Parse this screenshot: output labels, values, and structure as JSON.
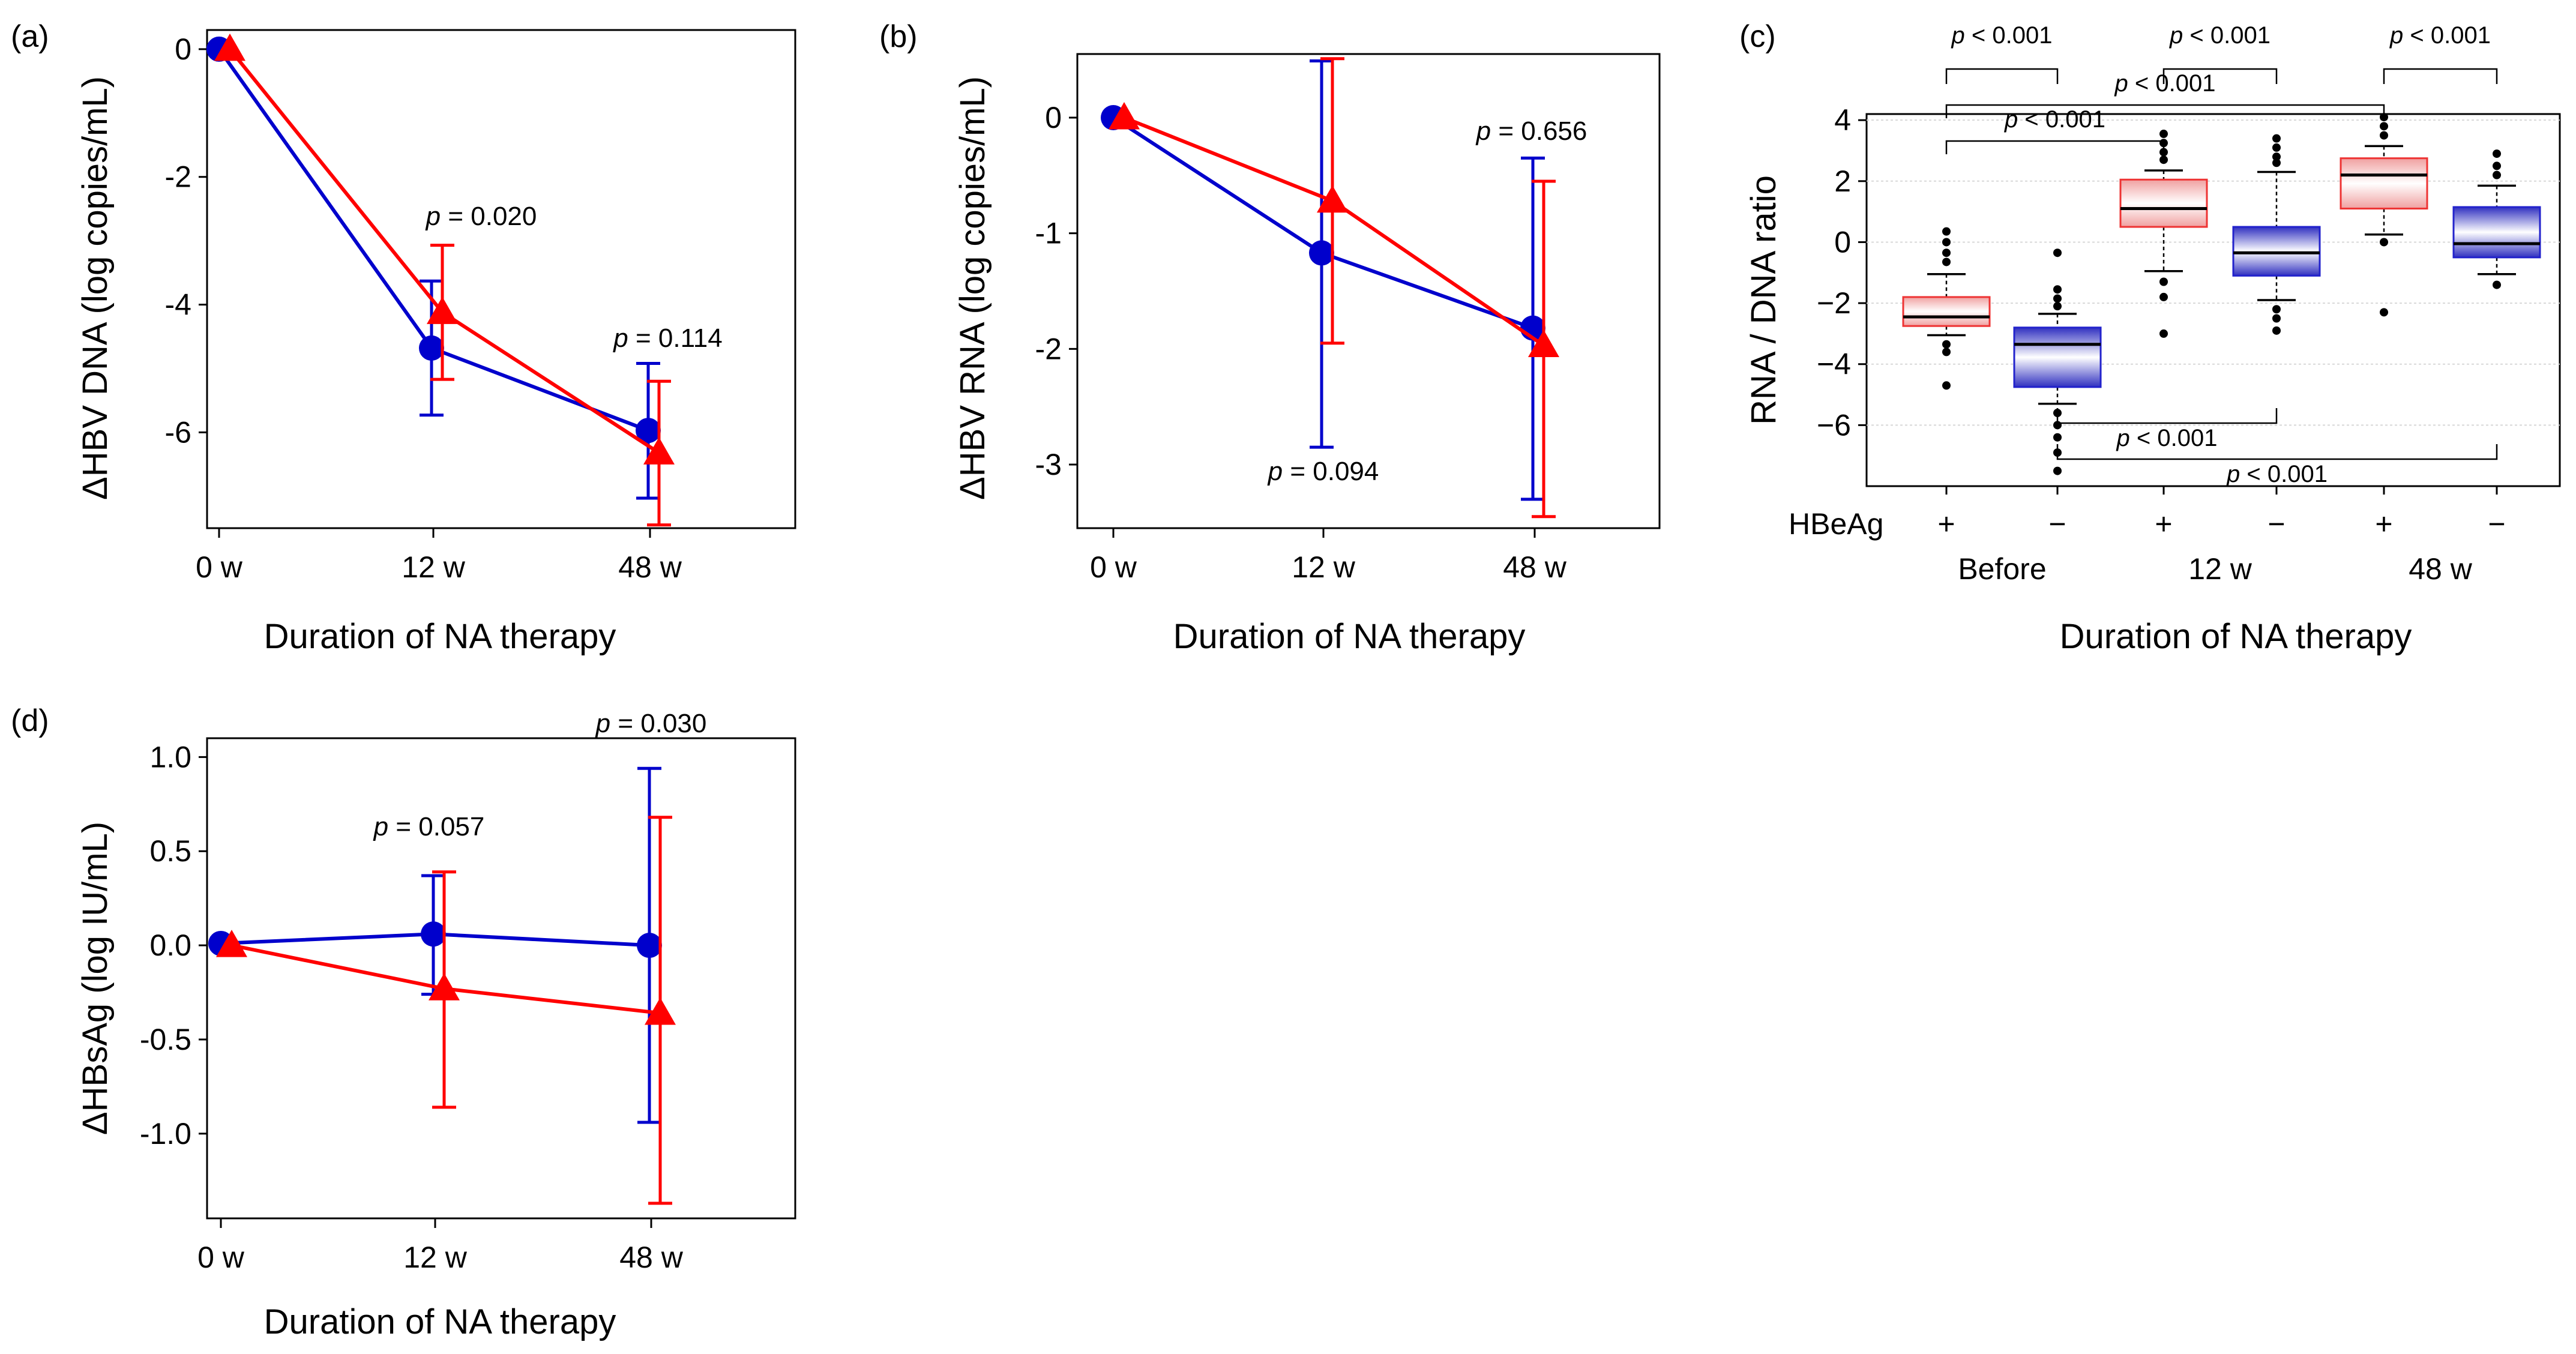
{
  "colors": {
    "hbeag_positive": "#ff0000",
    "hbeag_negative": "#0000cc",
    "box_positive_edge": "#ee3333",
    "box_negative_edge": "#2222cc"
  },
  "chart_data": [
    {
      "id": "a",
      "panel_label": "(a)",
      "type": "line",
      "x_categories": [
        "0 w",
        "12 w",
        "48 w"
      ],
      "xlabel": "Duration of NA therapy",
      "ylabel": "ΔHBV DNA (log copies/mL)",
      "ylim": [
        -7.5,
        0.3
      ],
      "yticks": [
        0,
        -2,
        -4,
        -6
      ],
      "ytick_labels": [
        "0",
        "-2",
        "-4",
        "-6"
      ],
      "series": [
        {
          "name": "HBeAg negative",
          "marker": "circle",
          "color": "#0000cc",
          "x": [
            0,
            12,
            48
          ],
          "values": [
            0,
            -4.68,
            -5.97
          ],
          "err_low": [
            null,
            -5.73,
            -7.03
          ],
          "err_high": [
            null,
            -3.63,
            -4.92
          ]
        },
        {
          "name": "HBeAg positive",
          "marker": "triangle",
          "color": "#ff0000",
          "x": [
            0,
            12,
            48
          ],
          "values": [
            0,
            -4.12,
            -6.32
          ],
          "err_low": [
            null,
            -5.17,
            -7.45
          ],
          "err_high": [
            null,
            -3.07,
            -5.2
          ]
        }
      ],
      "annotations": [
        {
          "at": "12 w",
          "p_prefix": "p",
          "p_text": " = 0.020"
        },
        {
          "at": "48 w",
          "p_prefix": "p",
          "p_text": " = 0.114"
        }
      ]
    },
    {
      "id": "b",
      "panel_label": "(b)",
      "type": "line",
      "x_categories": [
        "0 w",
        "12 w",
        "48 w"
      ],
      "xlabel": "Duration of NA therapy",
      "ylabel": "ΔHBV RNA (log copies/mL)",
      "ylim": [
        -3.55,
        0.55
      ],
      "yticks": [
        0,
        -1,
        -2,
        -3
      ],
      "ytick_labels": [
        "0",
        "-1",
        "-2",
        "-3"
      ],
      "series": [
        {
          "name": "HBeAg negative",
          "marker": "circle",
          "color": "#0000cc",
          "x": [
            0,
            12,
            48
          ],
          "values": [
            0,
            -1.17,
            -1.82
          ],
          "err_low": [
            null,
            -2.85,
            -3.3
          ],
          "err_high": [
            null,
            0.49,
            -0.35
          ]
        },
        {
          "name": "HBeAg positive",
          "marker": "triangle",
          "color": "#ff0000",
          "x": [
            0,
            12,
            48
          ],
          "values": [
            0,
            -0.72,
            -1.97
          ],
          "err_low": [
            null,
            -1.95,
            -3.45
          ],
          "err_high": [
            null,
            0.51,
            -0.55
          ]
        }
      ],
      "annotations": [
        {
          "at": "12 w",
          "p_prefix": "p",
          "p_text": " = 0.094"
        },
        {
          "at": "48 w",
          "p_prefix": "p",
          "p_text": " = 0.656"
        }
      ]
    },
    {
      "id": "c",
      "panel_label": "(c)",
      "type": "box",
      "xlabel": "Duration of NA therapy",
      "ylabel": "RNA / DNA ratio",
      "ylim": [
        -8,
        4.2
      ],
      "yticks": [
        4,
        2,
        0,
        -2,
        -4,
        -6
      ],
      "ytick_labels": [
        "4",
        "2",
        "0",
        "−2",
        "−4",
        "−6"
      ],
      "row_label": "HBeAg",
      "group_labels": [
        "Before",
        "12 w",
        "48 w"
      ],
      "boxes": [
        {
          "hbeag": "+",
          "group": "Before",
          "whisker_low": -3.05,
          "q1": -2.75,
          "median": -2.45,
          "q3": -1.8,
          "whisker_high": -1.05,
          "outliers": [
            0.35,
            0.0,
            -0.35,
            -0.65,
            -3.35,
            -3.6,
            -4.7
          ]
        },
        {
          "hbeag": "−",
          "group": "Before",
          "whisker_low": -5.3,
          "q1": -4.75,
          "median": -3.35,
          "q3": -2.8,
          "whisker_high": -2.35,
          "outliers": [
            -0.35,
            -1.55,
            -1.85,
            -2.1,
            -5.6,
            -6.0,
            -6.4,
            -6.9,
            -7.5
          ]
        },
        {
          "hbeag": "+",
          "group": "12 w",
          "whisker_low": -0.95,
          "q1": 0.5,
          "median": 1.1,
          "q3": 2.05,
          "whisker_high": 2.35,
          "outliers": [
            3.55,
            3.25,
            2.95,
            2.7,
            -1.3,
            -1.8,
            -3.0
          ]
        },
        {
          "hbeag": "−",
          "group": "12 w",
          "whisker_low": -1.9,
          "q1": -1.1,
          "median": -0.35,
          "q3": 0.5,
          "whisker_high": 2.3,
          "outliers": [
            3.4,
            3.1,
            2.8,
            2.6,
            -2.2,
            -2.5,
            -2.9
          ]
        },
        {
          "hbeag": "+",
          "group": "48 w",
          "whisker_low": 0.25,
          "q1": 1.1,
          "median": 2.2,
          "q3": 2.75,
          "whisker_high": 3.15,
          "outliers": [
            4.1,
            3.8,
            3.5,
            0.0,
            -2.3
          ]
        },
        {
          "hbeag": "−",
          "group": "48 w",
          "whisker_low": -1.05,
          "q1": -0.5,
          "median": -0.05,
          "q3": 1.15,
          "whisker_high": 1.85,
          "outliers": [
            2.9,
            2.5,
            2.2,
            -1.4
          ]
        }
      ],
      "comparisons": [
        {
          "from": 0,
          "to": 1,
          "p_prefix": "p",
          "p_text": " < 0.001"
        },
        {
          "from": 2,
          "to": 3,
          "p_prefix": "p",
          "p_text": " < 0.001"
        },
        {
          "from": 4,
          "to": 5,
          "p_prefix": "p",
          "p_text": " < 0.001"
        },
        {
          "from": 0,
          "to": 4,
          "p_prefix": "p",
          "p_text": " < 0.001"
        },
        {
          "from": 0,
          "to": 2,
          "p_prefix": "p",
          "p_text": " < 0.001"
        },
        {
          "from": 1,
          "to": 3,
          "p_prefix": "p",
          "p_text": " < 0.001"
        },
        {
          "from": 1,
          "to": 5,
          "p_prefix": "p",
          "p_text": " < 0.001"
        }
      ]
    },
    {
      "id": "d",
      "panel_label": "(d)",
      "type": "line",
      "x_categories": [
        "0 w",
        "12 w",
        "48 w"
      ],
      "xlabel": "Duration of NA therapy",
      "ylabel": "ΔHBsAg (log IU/mL)",
      "ylim": [
        -1.45,
        1.1
      ],
      "yticks": [
        1.0,
        0.5,
        0.0,
        -0.5,
        -1.0
      ],
      "ytick_labels": [
        "1.0",
        "0.5",
        "0.0",
        "-0.5",
        "-1.0"
      ],
      "series": [
        {
          "name": "HBeAg negative",
          "marker": "circle",
          "color": "#0000cc",
          "x": [
            0,
            12,
            48
          ],
          "values": [
            0.01,
            0.06,
            0.0
          ],
          "err_low": [
            null,
            -0.26,
            -0.94
          ],
          "err_high": [
            null,
            0.37,
            0.94
          ]
        },
        {
          "name": "HBeAg positive",
          "marker": "triangle",
          "color": "#ff0000",
          "x": [
            0,
            12,
            48
          ],
          "values": [
            0.0,
            -0.23,
            -0.36
          ],
          "err_low": [
            null,
            -0.86,
            -1.37
          ],
          "err_high": [
            null,
            0.39,
            0.68
          ]
        }
      ],
      "annotations": [
        {
          "at": "12 w",
          "p_prefix": "p",
          "p_text": " = 0.057"
        },
        {
          "at": "48 w",
          "p_prefix": "p",
          "p_text": " = 0.030"
        }
      ]
    }
  ]
}
